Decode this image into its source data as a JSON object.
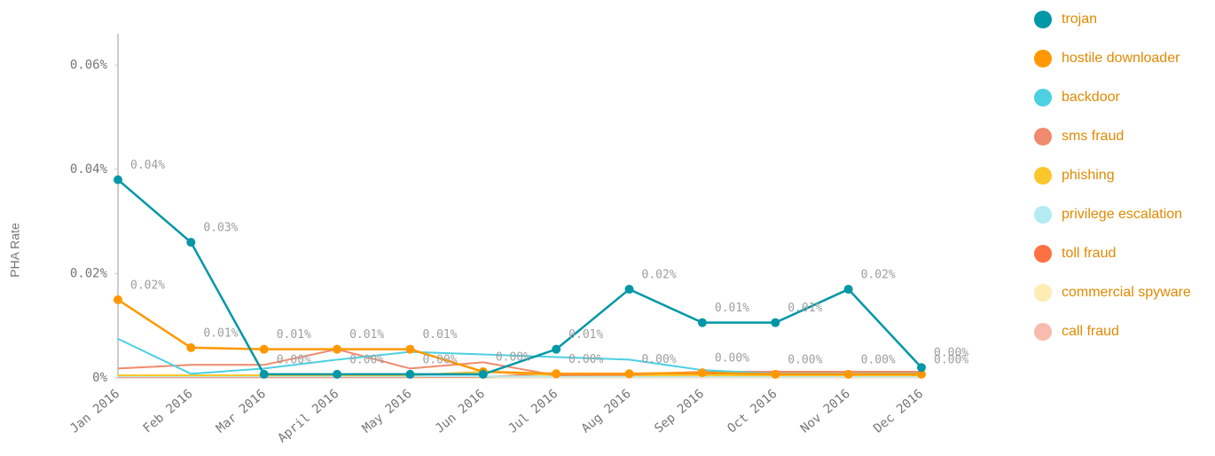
{
  "chart_data": {
    "type": "line",
    "y_label": "PHA Rate",
    "categories": [
      "Jan 2016",
      "Feb 2016",
      "Mar 2016",
      "April 2016",
      "May 2016",
      "Jun 2016",
      "Jul 2016",
      "Aug 2016",
      "Sep 2016",
      "Oct 2016",
      "Nov 2016",
      "Dec 2016"
    ],
    "ylim": [
      0,
      0.066
    ],
    "yticks": [
      {
        "value": 0,
        "label": "0%"
      },
      {
        "value": 0.02,
        "label": "0.02%"
      },
      {
        "value": 0.04,
        "label": "0.04%"
      },
      {
        "value": 0.06,
        "label": "0.06%"
      }
    ],
    "legend": "right",
    "series": [
      {
        "name": "trojan",
        "color": "#0097a7",
        "markers": true,
        "values": [
          0.038,
          0.026,
          0.0007,
          0.0007,
          0.0007,
          0.0007,
          0.0055,
          0.017,
          0.0106,
          0.0106,
          0.017,
          0.002
        ],
        "value_labels": [
          "0.04%",
          "0.03%",
          "0.00%",
          "0.00%",
          "0.00%",
          null,
          "0.01%",
          "0.02%",
          "0.01%",
          "0.01%",
          "0.02%",
          "0.00%"
        ]
      },
      {
        "name": "hostile downloader",
        "color": "#ff9800",
        "markers": true,
        "values": [
          0.015,
          0.0058,
          0.0055,
          0.0055,
          0.0055,
          0.0012,
          0.0008,
          0.0008,
          0.001,
          0.0007,
          0.0007,
          0.0007
        ],
        "value_labels": [
          "0.02%",
          "0.01%",
          "0.01%",
          "0.01%",
          "0.01%",
          "0.00%",
          "0.00%",
          "0.00%",
          "0.00%",
          "0.00%",
          "0.00%",
          "0.00%"
        ]
      },
      {
        "name": "backdoor",
        "color": "#4dd0e1",
        "markers": false,
        "values": [
          0.0075,
          0.0008,
          0.0018,
          0.0035,
          0.005,
          0.0045,
          0.004,
          0.0035,
          0.0015,
          0.0008,
          0.0008,
          0.0008
        ]
      },
      {
        "name": "sms fraud",
        "color": "#ef8a6c",
        "markers": false,
        "values": [
          0.0018,
          0.0025,
          0.0025,
          0.0055,
          0.0018,
          0.003,
          0.0005,
          0.0006,
          0.0012,
          0.0012,
          0.0012,
          0.0012
        ]
      },
      {
        "name": "phishing",
        "color": "#fbc62c",
        "markers": false,
        "values": [
          0.0005,
          0.0005,
          0.0005,
          0.0005,
          0.0005,
          0.0012,
          0.0005,
          0.0005,
          0.0005,
          0.0005,
          0.0005,
          0.0005
        ]
      },
      {
        "name": "privilege escalation",
        "color": "#b2ebf2",
        "markers": false,
        "values": [
          0.0003,
          0.0003,
          0.0003,
          0.0003,
          0.0003,
          0.0003,
          0.0003,
          0.0003,
          0.0003,
          0.0003,
          0.0003,
          0.0003
        ]
      },
      {
        "name": "toll fraud",
        "color": "#ff7043",
        "markers": false,
        "values": [
          0.0002,
          0.0002,
          0.0002,
          0.0002,
          0.0002,
          0.0002,
          0.0008,
          0.0008,
          0.0008,
          0.0008,
          0.0008,
          0.0008
        ]
      },
      {
        "name": "commercial spyware",
        "color": "#ffecb3",
        "markers": false,
        "values": [
          0.0002,
          0.0002,
          0.0002,
          0.0002,
          0.0002,
          0.0002,
          0.0002,
          0.0002,
          0.0002,
          0.0002,
          0.0002,
          0.0002
        ]
      },
      {
        "name": "call fraud",
        "color": "#f8bbae",
        "markers": false,
        "values": [
          0.0001,
          0.0001,
          0.0001,
          0.0001,
          0.0001,
          0.0001,
          0.0001,
          0.0001,
          0.0001,
          0.0001,
          0.0001,
          0.0001
        ]
      }
    ]
  }
}
